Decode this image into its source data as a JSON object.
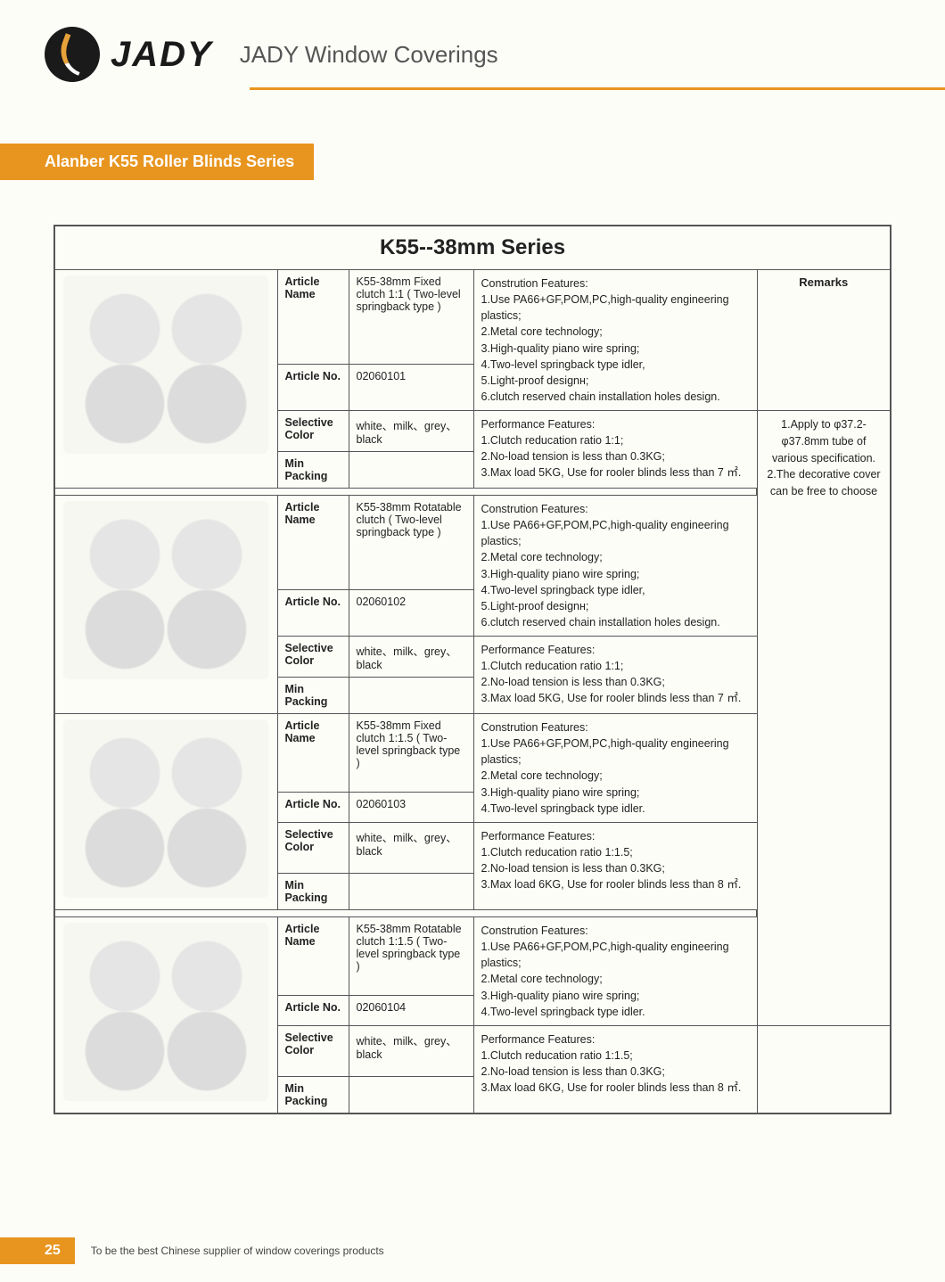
{
  "header": {
    "brand": "JADY",
    "title": "JADY Window Coverings",
    "accent_color": "#e8951f",
    "text_color": "#222222",
    "background_color": "#fdfdf8"
  },
  "section": {
    "badge": "Alanber K55 Roller Blinds Series"
  },
  "table": {
    "title": "K55--38mm Series",
    "labels": {
      "article_name": "Article Name",
      "article_no": "Article No.",
      "selective_color": "Selective Color",
      "min_packing": "Min Packing",
      "remarks": "Remarks"
    },
    "remarks_body": "1.Apply to φ37.2-φ37.8mm tube of various specification.\n2.The decorative cover can be free to choose",
    "products": [
      {
        "name": "K55-38mm Fixed clutch 1:1 ( Two-level springback type )",
        "no": "02060101",
        "color": "white、milk、grey、black",
        "min_packing": "",
        "construction_title": "Constrution Features:",
        "construction": "1.Use PA66+GF,POM,PC,high-quality engineering plastics;\n2.Metal core technology;\n3.High-quality piano wire spring;\n4.Two-level springback type idler,\n5.Light-proof designн;\n6.clutch reserved chain installation holes design.",
        "performance_title": "Performance Features:",
        "performance": "1.Clutch reducation ratio 1:1;\n2.No-load tension is less than 0.3KG;\n3.Max load 5KG, Use for rooler blinds less than 7 ㎡."
      },
      {
        "name": "K55-38mm Rotatable clutch ( Two-level springback type )",
        "no": "02060102",
        "color": "white、milk、grey、black",
        "min_packing": "",
        "construction_title": "Constrution Features:",
        "construction": "1.Use PA66+GF,POM,PC,high-quality engineering plastics;\n2.Metal core technology;\n3.High-quality piano wire spring;\n4.Two-level springback type idler,\n5.Light-proof designн;\n6.clutch reserved chain installation holes design.",
        "performance_title": "Performance Features:",
        "performance": "1.Clutch reducation ratio 1:1;\n2.No-load tension is less than 0.3KG;\n3.Max load 5KG, Use for rooler blinds less than 7 ㎡."
      },
      {
        "name": "K55-38mm Fixed clutch 1:1.5 ( Two-level springback type )",
        "no": "02060103",
        "color": "white、milk、grey、black",
        "min_packing": "",
        "construction_title": "Constrution Features:",
        "construction": "1.Use PA66+GF,POM,PC,high-quality engineering plastics;\n2.Metal core technology;\n3.High-quality piano wire spring;\n4.Two-level springback type idler.",
        "performance_title": "Performance Features:",
        "performance": "1.Clutch reducation ratio 1:1.5;\n2.No-load tension is less than 0.3KG;\n3.Max load 6KG, Use for rooler blinds less than 8 ㎡."
      },
      {
        "name": "K55-38mm Rotatable clutch 1:1.5 ( Two-level springback type )",
        "no": "02060104",
        "color": "white、milk、grey、black",
        "min_packing": "",
        "construction_title": "Constrution Features:",
        "construction": "1.Use PA66+GF,POM,PC,high-quality engineering plastics;\n2.Metal core technology;\n3.High-quality piano wire spring;\n4.Two-level springback type idler.",
        "performance_title": "Performance Features:",
        "performance": "1.Clutch reducation ratio 1:1.5;\n2.No-load tension is less than 0.3KG;\n3.Max load 6KG, Use for rooler blinds less than 8 ㎡."
      }
    ]
  },
  "footer": {
    "page": "25",
    "tagline": "To be the best Chinese supplier of window coverings products"
  }
}
